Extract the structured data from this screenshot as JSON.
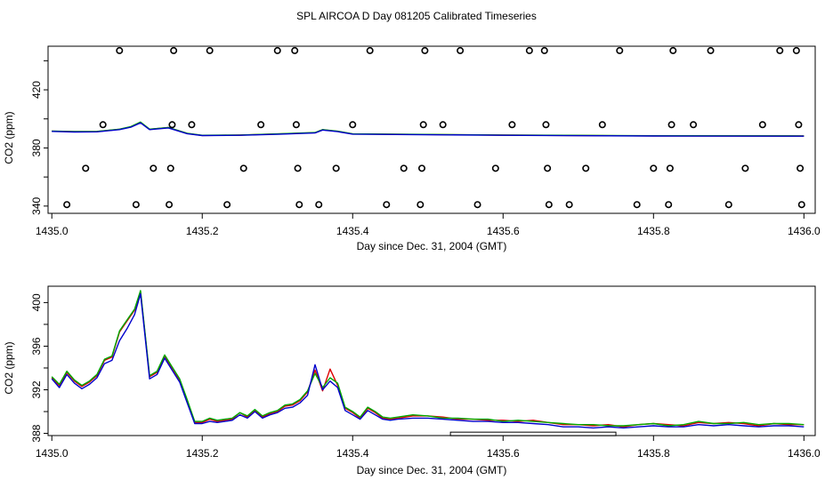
{
  "title": "SPL AIRCOA D  Day 081205  Calibrated Timeseries",
  "colors": {
    "red": "#dd0000",
    "green": "#00aa00",
    "blue": "#0000cc",
    "axis": "#000000"
  },
  "chart_data": [
    {
      "type": "scatter",
      "xlabel": "Day since Dec. 31, 2004 (GMT)",
      "ylabel": "CO2 (ppm)",
      "xlim": [
        1434.995,
        1436.015
      ],
      "ylim": [
        335,
        450
      ],
      "xticks": [
        "1435.0",
        "1435.2",
        "1435.4",
        "1435.6",
        "1435.8",
        "1436.0"
      ],
      "xtick_values": [
        1435.0,
        1435.2,
        1435.4,
        1435.6,
        1435.8,
        1436.0
      ],
      "yticks": [
        "340",
        "380",
        "420"
      ],
      "ytick_values": [
        340,
        380,
        420
      ],
      "ygrid_values": [
        340,
        360,
        380,
        400,
        420,
        440
      ],
      "markers": [
        {
          "x": 1435.02,
          "y": 341
        },
        {
          "x": 1435.045,
          "y": 366
        },
        {
          "x": 1435.068,
          "y": 396
        },
        {
          "x": 1435.09,
          "y": 447
        },
        {
          "x": 1435.112,
          "y": 341
        },
        {
          "x": 1435.135,
          "y": 366
        },
        {
          "x": 1435.156,
          "y": 341
        },
        {
          "x": 1435.158,
          "y": 366
        },
        {
          "x": 1435.16,
          "y": 396
        },
        {
          "x": 1435.162,
          "y": 447
        },
        {
          "x": 1435.186,
          "y": 396
        },
        {
          "x": 1435.21,
          "y": 447
        },
        {
          "x": 1435.233,
          "y": 341
        },
        {
          "x": 1435.255,
          "y": 366
        },
        {
          "x": 1435.278,
          "y": 396
        },
        {
          "x": 1435.3,
          "y": 447
        },
        {
          "x": 1435.323,
          "y": 447
        },
        {
          "x": 1435.325,
          "y": 396
        },
        {
          "x": 1435.327,
          "y": 366
        },
        {
          "x": 1435.329,
          "y": 341
        },
        {
          "x": 1435.355,
          "y": 341
        },
        {
          "x": 1435.378,
          "y": 366
        },
        {
          "x": 1435.4,
          "y": 396
        },
        {
          "x": 1435.423,
          "y": 447
        },
        {
          "x": 1435.445,
          "y": 341
        },
        {
          "x": 1435.468,
          "y": 366
        },
        {
          "x": 1435.49,
          "y": 341
        },
        {
          "x": 1435.492,
          "y": 366
        },
        {
          "x": 1435.494,
          "y": 396
        },
        {
          "x": 1435.496,
          "y": 447
        },
        {
          "x": 1435.52,
          "y": 396
        },
        {
          "x": 1435.543,
          "y": 447
        },
        {
          "x": 1435.566,
          "y": 341
        },
        {
          "x": 1435.59,
          "y": 366
        },
        {
          "x": 1435.612,
          "y": 396
        },
        {
          "x": 1435.635,
          "y": 447
        },
        {
          "x": 1435.655,
          "y": 447
        },
        {
          "x": 1435.657,
          "y": 396
        },
        {
          "x": 1435.659,
          "y": 366
        },
        {
          "x": 1435.661,
          "y": 341
        },
        {
          "x": 1435.688,
          "y": 341
        },
        {
          "x": 1435.71,
          "y": 366
        },
        {
          "x": 1435.732,
          "y": 396
        },
        {
          "x": 1435.755,
          "y": 447
        },
        {
          "x": 1435.778,
          "y": 341
        },
        {
          "x": 1435.8,
          "y": 366
        },
        {
          "x": 1435.82,
          "y": 341
        },
        {
          "x": 1435.822,
          "y": 366
        },
        {
          "x": 1435.824,
          "y": 396
        },
        {
          "x": 1435.826,
          "y": 447
        },
        {
          "x": 1435.853,
          "y": 396
        },
        {
          "x": 1435.876,
          "y": 447
        },
        {
          "x": 1435.9,
          "y": 341
        },
        {
          "x": 1435.922,
          "y": 366
        },
        {
          "x": 1435.945,
          "y": 396
        },
        {
          "x": 1435.968,
          "y": 447
        },
        {
          "x": 1435.99,
          "y": 447
        },
        {
          "x": 1435.993,
          "y": 396
        },
        {
          "x": 1435.995,
          "y": 366
        },
        {
          "x": 1435.997,
          "y": 341
        }
      ],
      "series": [
        {
          "color": "#dd0000",
          "x": [
            1435.0,
            1435.03,
            1435.06,
            1435.09,
            1435.105,
            1435.118,
            1435.13,
            1435.155,
            1435.18,
            1435.2,
            1435.25,
            1435.3,
            1435.35,
            1435.36,
            1435.38,
            1435.4,
            1435.6,
            1435.8,
            1436.0
          ],
          "y": [
            391.5,
            391.2,
            391.3,
            392.8,
            394.5,
            397.5,
            392.8,
            394.0,
            390.0,
            388.6,
            388.8,
            389.6,
            390.5,
            392.5,
            391.4,
            389.6,
            388.8,
            388.3,
            388.2
          ]
        },
        {
          "color": "#00aa00",
          "x": [
            1435.0,
            1435.03,
            1435.06,
            1435.09,
            1435.105,
            1435.118,
            1435.13,
            1435.155,
            1435.18,
            1435.2,
            1435.25,
            1435.3,
            1435.35,
            1435.36,
            1435.38,
            1435.4,
            1435.6,
            1435.8,
            1436.0
          ],
          "y": [
            391.6,
            391.3,
            391.4,
            392.9,
            394.7,
            397.8,
            392.9,
            394.1,
            390.1,
            388.7,
            388.9,
            389.7,
            390.6,
            392.6,
            391.5,
            389.7,
            388.9,
            388.4,
            388.3
          ]
        },
        {
          "color": "#0000cc",
          "x": [
            1435.0,
            1435.03,
            1435.06,
            1435.09,
            1435.105,
            1435.118,
            1435.13,
            1435.155,
            1435.18,
            1435.2,
            1435.25,
            1435.3,
            1435.35,
            1435.36,
            1435.38,
            1435.4,
            1435.6,
            1435.8,
            1436.0
          ],
          "y": [
            391.4,
            391.0,
            391.1,
            392.6,
            394.3,
            397.3,
            392.6,
            393.8,
            389.8,
            388.5,
            388.7,
            389.4,
            390.3,
            392.3,
            391.2,
            389.5,
            388.7,
            388.2,
            388.1
          ]
        }
      ]
    },
    {
      "type": "line",
      "xlabel": "Day since Dec. 31, 2004 (GMT)",
      "ylabel": "CO2 (ppm)",
      "xlim": [
        1434.995,
        1436.015
      ],
      "ylim": [
        387.8,
        401.5
      ],
      "xticks": [
        "1435.0",
        "1435.2",
        "1435.4",
        "1435.6",
        "1435.8",
        "1436.0"
      ],
      "xtick_values": [
        1435.0,
        1435.2,
        1435.4,
        1435.6,
        1435.8,
        1436.0
      ],
      "yticks": [
        "388",
        "392",
        "396",
        "400"
      ],
      "ytick_values": [
        388,
        392,
        396,
        400
      ],
      "ygrid_values": [
        388,
        390,
        392,
        394,
        396,
        398,
        400
      ],
      "calibration_bar": {
        "x": [
          1435.53,
          1435.75
        ],
        "y": 387.95
      },
      "series": [
        {
          "color": "#dd0000",
          "x": [
            1435.0,
            1435.01,
            1435.02,
            1435.03,
            1435.04,
            1435.05,
            1435.06,
            1435.07,
            1435.08,
            1435.09,
            1435.1,
            1435.11,
            1435.118,
            1435.13,
            1435.14,
            1435.15,
            1435.16,
            1435.17,
            1435.18,
            1435.19,
            1435.2,
            1435.21,
            1435.22,
            1435.23,
            1435.24,
            1435.25,
            1435.26,
            1435.27,
            1435.28,
            1435.29,
            1435.3,
            1435.31,
            1435.32,
            1435.33,
            1435.34,
            1435.35,
            1435.36,
            1435.37,
            1435.38,
            1435.39,
            1435.4,
            1435.41,
            1435.42,
            1435.43,
            1435.44,
            1435.45,
            1435.46,
            1435.48,
            1435.5,
            1435.52,
            1435.54,
            1435.56,
            1435.58,
            1435.6,
            1435.62,
            1435.64,
            1435.66,
            1435.68,
            1435.7,
            1435.72,
            1435.74,
            1435.76,
            1435.78,
            1435.8,
            1435.82,
            1435.84,
            1435.86,
            1435.88,
            1435.9,
            1435.92,
            1435.94,
            1435.96,
            1435.98,
            1436.0
          ],
          "y": [
            393.1,
            392.4,
            393.6,
            392.8,
            392.3,
            392.7,
            393.3,
            394.7,
            395.0,
            397.3,
            398.3,
            399.3,
            401.0,
            393.2,
            393.6,
            395.1,
            394.0,
            392.9,
            391.0,
            389.0,
            389.0,
            389.3,
            389.1,
            389.2,
            389.3,
            389.9,
            389.5,
            390.1,
            389.5,
            389.8,
            390.0,
            390.5,
            390.6,
            391.0,
            391.8,
            393.8,
            391.9,
            393.9,
            392.4,
            390.3,
            389.9,
            389.4,
            390.3,
            389.9,
            389.4,
            389.3,
            389.4,
            389.6,
            389.6,
            389.5,
            389.3,
            389.3,
            389.2,
            389.2,
            389.1,
            389.2,
            389.0,
            388.8,
            388.8,
            388.7,
            388.8,
            388.6,
            388.8,
            388.9,
            388.8,
            388.7,
            389.0,
            388.9,
            389.0,
            388.9,
            388.7,
            388.9,
            388.8,
            388.8
          ]
        },
        {
          "color": "#00aa00",
          "x": [
            1435.0,
            1435.01,
            1435.02,
            1435.03,
            1435.04,
            1435.05,
            1435.06,
            1435.07,
            1435.08,
            1435.09,
            1435.1,
            1435.11,
            1435.118,
            1435.13,
            1435.14,
            1435.15,
            1435.16,
            1435.17,
            1435.18,
            1435.19,
            1435.2,
            1435.21,
            1435.22,
            1435.23,
            1435.24,
            1435.25,
            1435.26,
            1435.27,
            1435.28,
            1435.29,
            1435.3,
            1435.31,
            1435.32,
            1435.33,
            1435.34,
            1435.35,
            1435.36,
            1435.37,
            1435.38,
            1435.39,
            1435.4,
            1435.41,
            1435.42,
            1435.43,
            1435.44,
            1435.45,
            1435.46,
            1435.48,
            1435.5,
            1435.52,
            1435.54,
            1435.56,
            1435.58,
            1435.6,
            1435.62,
            1435.64,
            1435.66,
            1435.68,
            1435.7,
            1435.72,
            1435.74,
            1435.76,
            1435.78,
            1435.8,
            1435.82,
            1435.84,
            1435.86,
            1435.88,
            1435.9,
            1435.92,
            1435.94,
            1435.96,
            1435.98,
            1436.0
          ],
          "y": [
            393.2,
            392.5,
            393.7,
            392.9,
            392.4,
            392.8,
            393.4,
            394.8,
            395.1,
            397.4,
            398.4,
            399.4,
            401.1,
            393.3,
            393.7,
            395.2,
            394.1,
            393.0,
            391.1,
            389.1,
            389.1,
            389.4,
            389.2,
            389.3,
            389.4,
            389.9,
            389.6,
            390.2,
            389.6,
            389.9,
            390.1,
            390.6,
            390.7,
            391.1,
            391.9,
            393.5,
            392.2,
            393.1,
            392.6,
            390.4,
            390.0,
            389.5,
            390.4,
            390.0,
            389.5,
            389.4,
            389.5,
            389.7,
            389.6,
            389.4,
            389.4,
            389.3,
            389.3,
            389.1,
            389.2,
            389.1,
            389.0,
            388.9,
            388.8,
            388.8,
            388.7,
            388.7,
            388.8,
            388.9,
            388.7,
            388.8,
            389.1,
            388.9,
            388.9,
            389.0,
            388.8,
            388.9,
            388.9,
            388.8
          ]
        },
        {
          "color": "#0000cc",
          "x": [
            1435.0,
            1435.01,
            1435.02,
            1435.03,
            1435.04,
            1435.05,
            1435.06,
            1435.07,
            1435.08,
            1435.09,
            1435.1,
            1435.11,
            1435.118,
            1435.13,
            1435.14,
            1435.15,
            1435.16,
            1435.17,
            1435.18,
            1435.19,
            1435.2,
            1435.21,
            1435.22,
            1435.23,
            1435.24,
            1435.25,
            1435.26,
            1435.27,
            1435.28,
            1435.29,
            1435.3,
            1435.31,
            1435.32,
            1435.33,
            1435.34,
            1435.35,
            1435.36,
            1435.37,
            1435.38,
            1435.39,
            1435.4,
            1435.41,
            1435.42,
            1435.43,
            1435.44,
            1435.45,
            1435.46,
            1435.48,
            1435.5,
            1435.52,
            1435.54,
            1435.56,
            1435.58,
            1435.6,
            1435.62,
            1435.64,
            1435.66,
            1435.68,
            1435.7,
            1435.72,
            1435.74,
            1435.76,
            1435.78,
            1435.8,
            1435.82,
            1435.84,
            1435.86,
            1435.88,
            1435.9,
            1435.92,
            1435.94,
            1435.96,
            1435.98,
            1436.0
          ],
          "y": [
            393.0,
            392.2,
            393.4,
            392.6,
            392.1,
            392.5,
            393.1,
            394.4,
            394.7,
            396.5,
            397.6,
            398.9,
            400.8,
            393.0,
            393.4,
            394.9,
            393.8,
            392.7,
            390.8,
            388.9,
            388.9,
            389.1,
            389.0,
            389.1,
            389.2,
            389.7,
            389.4,
            390.0,
            389.4,
            389.7,
            389.9,
            390.3,
            390.4,
            390.8,
            391.5,
            394.3,
            392.0,
            392.8,
            392.2,
            390.1,
            389.7,
            389.3,
            390.1,
            389.7,
            389.3,
            389.2,
            389.3,
            389.4,
            389.4,
            389.3,
            389.2,
            389.1,
            389.1,
            389.0,
            389.0,
            388.9,
            388.8,
            388.6,
            388.6,
            388.5,
            388.6,
            388.5,
            388.6,
            388.7,
            388.6,
            388.6,
            388.8,
            388.7,
            388.8,
            388.7,
            388.6,
            388.7,
            388.7,
            388.6
          ]
        }
      ]
    }
  ]
}
